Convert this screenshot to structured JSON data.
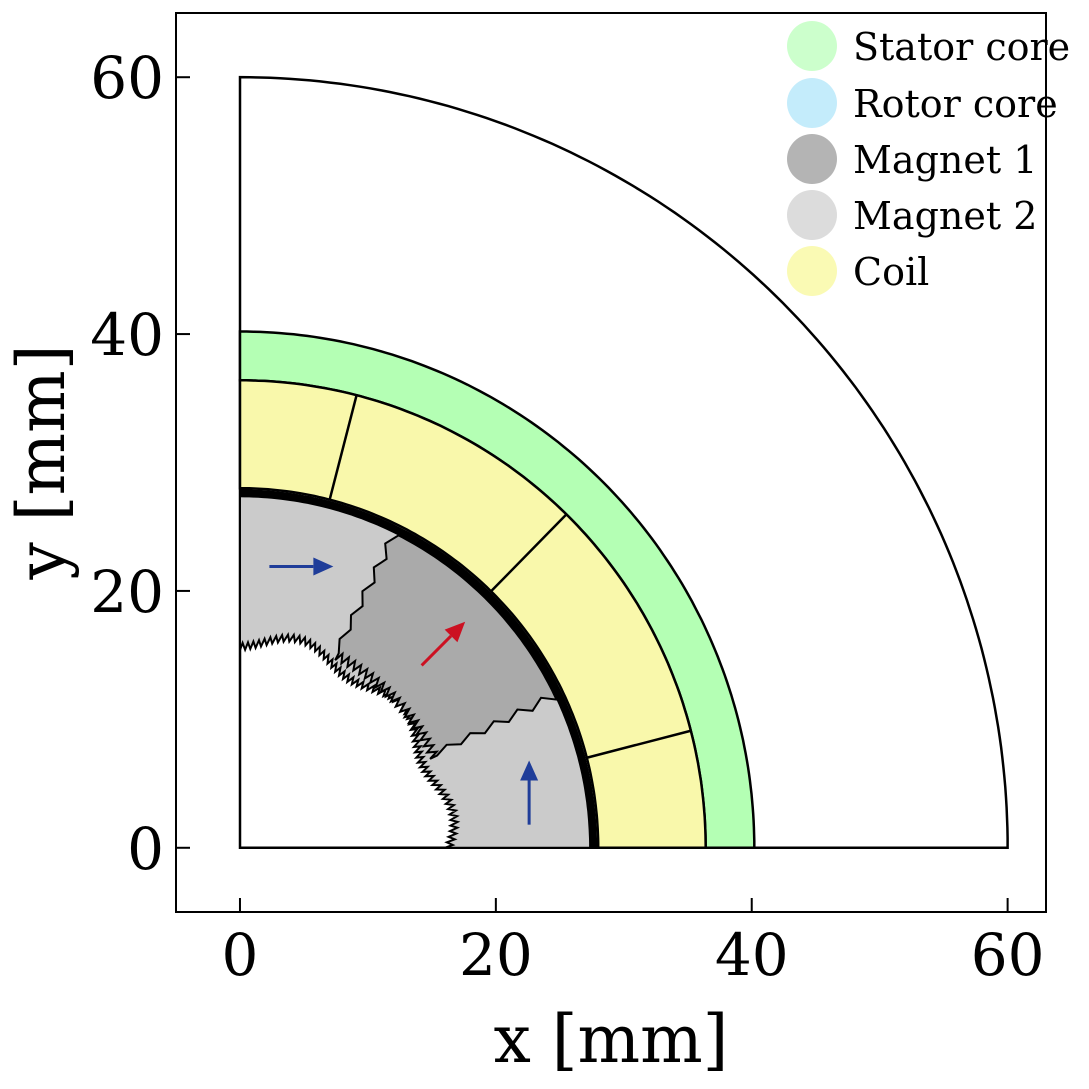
{
  "chart_data": {
    "type": "diagram",
    "xlabel": "x [mm]",
    "ylabel": "y [mm]",
    "xlim": [
      -5,
      63
    ],
    "ylim": [
      -5,
      65
    ],
    "xticks": [
      0,
      20,
      40,
      60
    ],
    "yticks": [
      0,
      20,
      40,
      60
    ],
    "legend": {
      "placement": "top-right",
      "items": [
        {
          "label": "Stator core",
          "color": "#ccffcc"
        },
        {
          "label": "Rotor core",
          "color": "#c4ecfb"
        },
        {
          "label": "Magnet 1",
          "color": "#b4b4b4"
        },
        {
          "label": "Magnet 2",
          "color": "#dcdcdc"
        },
        {
          "label": "Coil",
          "color": "#fafab4"
        }
      ]
    },
    "geometry": {
      "outer_radius": 60,
      "stator_outer_radius": 40.2,
      "stator_inner_radius": 36.4,
      "coil_inner_radius": 28.0,
      "rotor_outer_radius": 27.6,
      "rotor_inner_radius": 16.0,
      "coil_slot_boundaries_deg": [
        14.5,
        45.5,
        75.5
      ],
      "magnet1_span_deg": [
        25.0,
        63.0
      ]
    },
    "region_colors": {
      "stator": "#b4ffb4",
      "coil": "#f9f8ab",
      "magnet1": "#aaaaaa",
      "magnet2": "#cbcbcb",
      "arrow_blue": "#1f3d99",
      "arrow_red": "#cc1122"
    },
    "magnetization_arrows": [
      {
        "region": "Magnet 2",
        "from": [
          2.3,
          21.9
        ],
        "to": [
          7.3,
          21.9
        ],
        "color": "#1f3d99"
      },
      {
        "region": "Magnet 1",
        "from": [
          14.2,
          14.2
        ],
        "to": [
          17.6,
          17.6
        ],
        "color": "#cc1122"
      },
      {
        "region": "Magnet 2",
        "from": [
          22.6,
          1.8
        ],
        "to": [
          22.6,
          6.8
        ],
        "color": "#1f3d99"
      }
    ]
  }
}
